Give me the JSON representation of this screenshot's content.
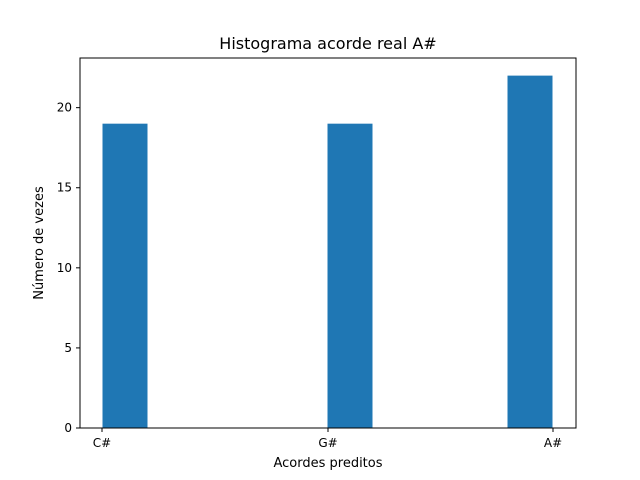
{
  "chart_data": {
    "type": "bar",
    "title": "Histograma acorde real A#",
    "xlabel": "Acordes preditos",
    "ylabel": "Número de vezes",
    "categories": [
      "C#",
      "G#",
      "A#"
    ],
    "values": [
      19,
      19,
      22
    ],
    "yticks": [
      0,
      5,
      10,
      15,
      20
    ],
    "ylim": [
      0,
      23.1
    ],
    "bar_color": "#1f77b4",
    "grid": false,
    "legend": "none"
  }
}
